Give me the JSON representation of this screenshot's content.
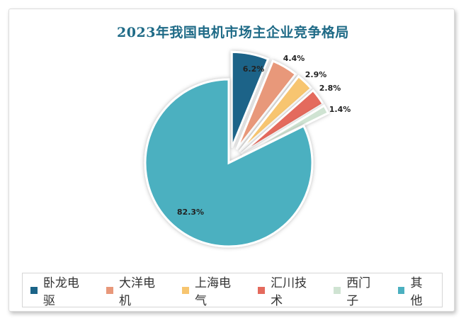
{
  "chart_data": {
    "type": "pie",
    "title": "2023年我国电机市场主企业竞争格局",
    "categories": [
      "卧龙电驱",
      "大洋电机",
      "上海电气",
      "汇川技术",
      "西门子",
      "其他"
    ],
    "values": [
      6.2,
      4.4,
      2.9,
      2.8,
      1.4,
      82.3
    ],
    "value_labels": [
      "6.2%",
      "4.4%",
      "2.9%",
      "2.8%",
      "1.4%",
      "82.3%"
    ],
    "colors": [
      "#1b6488",
      "#e8987a",
      "#f7c56f",
      "#e46a5d",
      "#cfe3d2",
      "#4bb0c0"
    ],
    "exploded": [
      "卧龙电驱",
      "大洋电机",
      "上海电气",
      "汇川技术",
      "西门子"
    ],
    "legend_position": "bottom"
  }
}
